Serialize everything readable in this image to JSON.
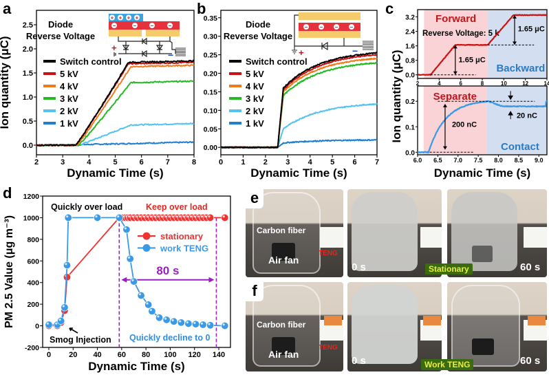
{
  "figure_labels": {
    "a": "a",
    "b": "b",
    "c": "c",
    "d": "d",
    "e": "e",
    "f": "f"
  },
  "colors": {
    "switch": "#000000",
    "kv5": "#cc1111",
    "kv4": "#f07a1a",
    "kv3": "#22bb22",
    "kv2": "#55c3f2",
    "kv1": "#1f7fd0",
    "forward_bg": "#f9d3d6",
    "backward_bg": "#d3dff0",
    "stationary": "#ee3333",
    "work": "#3a9ae8",
    "purple": "#9a1fbf"
  },
  "chart_data": [
    {
      "id": "a",
      "type": "line",
      "xlabel": "Dynamic Time (s)",
      "ylabel": "Ion quantity (μC)",
      "xlim": [
        2,
        8
      ],
      "ylim": [
        -0.2,
        2.8
      ],
      "xticks": [
        "2",
        "3",
        "4",
        "5",
        "6",
        "7",
        "8"
      ],
      "yticks": [
        "0.0",
        "0.5",
        "1.0",
        "1.5",
        "2.0",
        "2.5"
      ],
      "annotation": [
        "Diode",
        "Reverse Voltage"
      ],
      "legend_position": "left",
      "series": [
        {
          "name": "Switch control",
          "color_key": "switch",
          "onset": 3.5,
          "end": 5.5,
          "plateau": 1.72
        },
        {
          "name": "5 kV",
          "color_key": "kv5",
          "onset": 3.5,
          "end": 5.5,
          "plateau": 1.69
        },
        {
          "name": "4 kV",
          "color_key": "kv4",
          "onset": 3.55,
          "end": 5.6,
          "plateau": 1.63
        },
        {
          "name": "3 kV",
          "color_key": "kv3",
          "onset": 3.6,
          "end": 5.6,
          "plateau": 1.3
        },
        {
          "name": "2 kV",
          "color_key": "kv2",
          "onset": 3.6,
          "end": 5.6,
          "plateau": 0.42
        },
        {
          "name": "1 kV",
          "color_key": "kv1",
          "onset": 3.6,
          "end": 3.6,
          "plateau": 0.01
        }
      ],
      "circuit_labels": {
        "plus": "+",
        "minus": "−"
      }
    },
    {
      "id": "b",
      "type": "line",
      "xlabel": "Dynamic Time (s)",
      "ylabel": "",
      "xlim": [
        0,
        7
      ],
      "ylim": [
        -0.02,
        0.37
      ],
      "xticks": [
        "0",
        "1",
        "2",
        "3",
        "4",
        "5",
        "6",
        "7"
      ],
      "yticks": [
        "0.00",
        "0.05",
        "0.10",
        "0.15",
        "0.20",
        "0.25",
        "0.30",
        "0.35"
      ],
      "annotation": [
        "Diode",
        "Reverse Voltage"
      ],
      "legend_position": "left",
      "series": [
        {
          "name": "Switch control",
          "color_key": "switch",
          "jump": 0.16,
          "final": 0.255
        },
        {
          "name": "5 kV",
          "color_key": "kv5",
          "jump": 0.155,
          "final": 0.25
        },
        {
          "name": "4 kV",
          "color_key": "kv4",
          "jump": 0.15,
          "final": 0.24
        },
        {
          "name": "3 kV",
          "color_key": "kv3",
          "jump": 0.14,
          "final": 0.228
        },
        {
          "name": "2 kV",
          "color_key": "kv2",
          "jump": 0.05,
          "final": 0.117
        },
        {
          "name": "1 kV",
          "color_key": "kv1",
          "jump": 0.012,
          "final": 0.02
        }
      ],
      "onset": 2.55,
      "circuit_labels": {
        "plus": "+",
        "minus": "−"
      }
    },
    {
      "id": "c-top",
      "type": "line",
      "xlim": [
        2,
        14
      ],
      "ylim": [
        -0.2,
        3.6
      ],
      "xticks": [
        "2",
        "4",
        "6",
        "8",
        "10",
        "12",
        "14"
      ],
      "yticks": [
        "0.0",
        "0.8",
        "1.6",
        "2.4",
        "3.2"
      ],
      "regions": [
        {
          "label": "Forward",
          "from": 2.6,
          "to": 8.5,
          "color_key": "forward_bg"
        },
        {
          "label": "Backward",
          "from": 8.5,
          "to": 14,
          "color_key": "backward_bg"
        }
      ],
      "annotation": "Reverse Voltage: 5 k",
      "steps": [
        {
          "from": 3.2,
          "to": 5.5,
          "y0": 0.0,
          "y1": 1.65
        },
        {
          "from": 8.5,
          "to": 10.9,
          "y0": 1.65,
          "y1": 3.3
        }
      ],
      "delta_labels": [
        "1.65 μC",
        "1.65 μC"
      ],
      "series_color_key": "kv5"
    },
    {
      "id": "c-bottom",
      "type": "line",
      "xlabel": "Dynamic Time (s)",
      "ylabel": "Ion quantity (μC)",
      "xlim": [
        6.0,
        9.2
      ],
      "ylim": [
        -0.01,
        0.26
      ],
      "xticks": [
        "6.0",
        "6.5",
        "7.0",
        "7.5",
        "8.0",
        "8.5",
        "9.0"
      ],
      "yticks": [
        "0.0",
        "0.1",
        "0.2"
      ],
      "regions": [
        {
          "label": "Separate",
          "from": 6.15,
          "to": 7.7,
          "color_key": "forward_bg"
        },
        {
          "label": "Contact",
          "from": 7.7,
          "to": 9.2,
          "color_key": "backward_bg"
        }
      ],
      "onset": 6.27,
      "peak": 0.2,
      "peak_t": 7.75,
      "settle": 0.18,
      "delta_labels": [
        "200 nC",
        "20 nC"
      ],
      "series_color_key": "work"
    },
    {
      "id": "d",
      "type": "scatter",
      "xlabel": "Dynamic Time (s)",
      "ylabel": "PM 2.5 Value (μg m⁻³)",
      "xlim": [
        -5,
        150
      ],
      "ylim": [
        -200,
        1200
      ],
      "xticks": [
        "0",
        "20",
        "40",
        "60",
        "80",
        "100",
        "120",
        "140"
      ],
      "yticks": [
        "-200",
        "0",
        "200",
        "400",
        "600",
        "800",
        "1000",
        "1200"
      ],
      "legend_position": "center-right",
      "series": [
        {
          "name": "stationary",
          "color_key": "stationary",
          "x": [
            0,
            7,
            10,
            13,
            15,
            58,
            61,
            63,
            65,
            67,
            70,
            73,
            76,
            79,
            82,
            85,
            88,
            91,
            94,
            97,
            100,
            103,
            106,
            109,
            112,
            115,
            118,
            121,
            124,
            127,
            130,
            133,
            145
          ],
          "y": [
            0,
            0,
            30,
            140,
            450,
            1000,
            1000,
            1000,
            1000,
            1000,
            1000,
            1000,
            1000,
            1000,
            1000,
            1000,
            1000,
            1000,
            1000,
            1000,
            1000,
            1000,
            1000,
            1000,
            1000,
            1000,
            1000,
            1000,
            1000,
            1000,
            1000,
            1000,
            1000
          ]
        },
        {
          "name": "work TENG",
          "color_key": "work",
          "x": [
            0,
            7,
            10,
            13,
            15,
            16,
            40,
            58,
            64,
            67,
            70,
            76,
            82,
            85,
            91,
            97,
            103,
            109,
            115,
            121,
            127,
            133,
            145
          ],
          "y": [
            10,
            10,
            45,
            170,
            560,
            1000,
            1000,
            1000,
            890,
            620,
            410,
            280,
            195,
            135,
            75,
            55,
            40,
            30,
            20,
            15,
            10,
            5,
            0
          ]
        }
      ],
      "annotations": {
        "quick_over": "Quickly over load",
        "keep_over": "Keep over load",
        "smog": "Smog Injection",
        "decline": "Quickly decline to 0",
        "interval": "80 s",
        "interval_from": 58,
        "interval_to": 138
      }
    }
  ],
  "photos": {
    "e": {
      "carbon": "Carbon fiber",
      "fan": "Air fan",
      "teng": "TENG",
      "t0": "0 s",
      "t60": "60 s",
      "badge": "Stationary"
    },
    "f": {
      "carbon": "Carbon fiber",
      "fan": "Air fan",
      "teng": "TENG",
      "t0": "0 s",
      "t60": "60 s",
      "badge": "Work TENG"
    }
  }
}
